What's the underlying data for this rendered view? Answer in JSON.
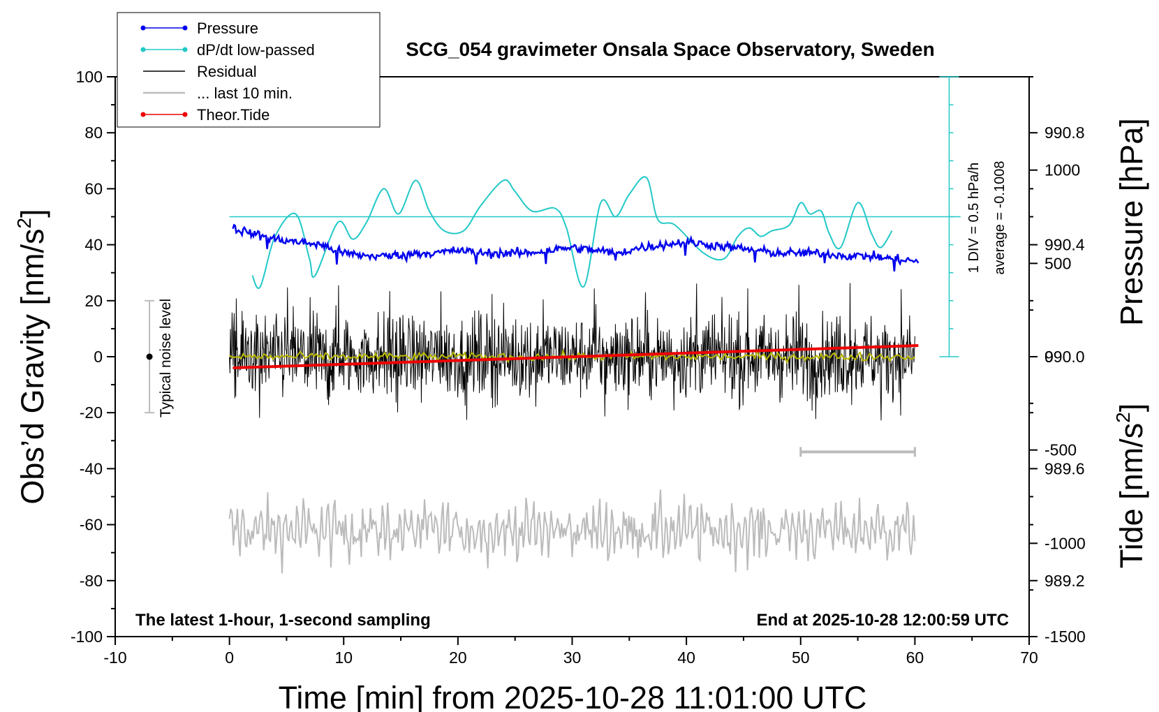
{
  "chart_data": {
    "type": "line",
    "title": "SCG_054 gravimeter Onsala Space Observatory, Sweden",
    "xlabel": "Time [min] from 2025-10-28 11:01:00 UTC",
    "ylabel_left": "Obs’d Gravity [nm/s",
    "ylabel_left_sup": "2",
    "ylabel_left_end": "]",
    "ylabel_right_pressure": "Pressure [hPa]",
    "ylabel_right_tide": "Tide [nm/s",
    "ylabel_right_tide_sup": "2",
    "ylabel_right_tide_end": "]",
    "xlim": [
      -10,
      70
    ],
    "ylim_gravity": [
      -100,
      100
    ],
    "ylim_pressure": [
      989.0,
      991.0
    ],
    "ylim_tide": [
      -1500,
      1500
    ],
    "x_ticks": [
      "-10",
      "0",
      "10",
      "20",
      "30",
      "40",
      "50",
      "60",
      "70"
    ],
    "y_ticks_gravity": [
      "-100",
      "-80",
      "-60",
      "-40",
      "-20",
      "0",
      "20",
      "40",
      "60",
      "80",
      "100"
    ],
    "y_ticks_pressure": [
      "989.2",
      "989.6",
      "990.0",
      "990.4",
      "990.8"
    ],
    "y_ticks_tide": [
      "-1500",
      "-1000",
      "-500",
      "0",
      "500",
      "1000"
    ],
    "grid": false,
    "legend_position": "top-left",
    "legend": [
      {
        "label": "Pressure",
        "color": "#0000ee",
        "marker": true
      },
      {
        "label": "dP/dt low-passed",
        "color": "#22c8c8",
        "marker": true
      },
      {
        "label": "Residual",
        "color": "#000000",
        "marker": false
      },
      {
        "label": "... last 10 min.",
        "color": "#bbbbbb",
        "marker": false
      },
      {
        "label": "Theor.Tide",
        "color": "#ee0000",
        "marker": true
      }
    ],
    "annotations": {
      "left_bottom": "The latest 1-hour, 1-second sampling",
      "right_bottom": "End at 2025-10-28 12:00:59 UTC",
      "noise": "Typical noise level",
      "dpdt_scale": "1 DIV = 0.5 hPa/h",
      "dpdt_average": "average = -0.1008"
    },
    "noise_bar": {
      "x": -7,
      "center": 0,
      "low": -20,
      "high": 20
    },
    "last10min_bar": {
      "x_start": 50,
      "x_end": 60,
      "y": -34
    },
    "dpdt_zero_level": 50,
    "dpdt_scale_bar": {
      "x": 63,
      "y_bottom": 0,
      "y_top": 100,
      "divisions": 10
    },
    "series": [
      {
        "name": "Pressure",
        "axis": "pressure",
        "color": "#0000ee",
        "x": [
          0.3,
          2,
          4,
          6,
          8,
          10,
          12,
          14,
          16,
          18,
          20,
          22,
          24,
          26,
          28,
          30,
          32,
          34,
          36,
          38,
          40,
          42,
          44,
          46,
          48,
          50,
          52,
          54,
          56,
          58,
          60.3
        ],
        "y": [
          990.46,
          990.44,
          990.42,
          990.41,
          990.4,
          990.37,
          990.36,
          990.36,
          990.37,
          990.37,
          990.38,
          990.37,
          990.37,
          990.37,
          990.38,
          990.39,
          990.38,
          990.37,
          990.39,
          990.4,
          990.41,
          990.4,
          990.39,
          990.38,
          990.37,
          990.37,
          990.37,
          990.36,
          990.36,
          990.35,
          990.34
        ]
      },
      {
        "name": "dP/dt low-passed",
        "axis": "gravity",
        "color": "#22c8c8",
        "x": [
          2,
          2.7,
          4,
          5.8,
          7,
          7.5,
          9.5,
          10.8,
          12,
          13.5,
          14.8,
          16.3,
          17.5,
          18.8,
          20.5,
          22,
          24,
          25,
          26.5,
          28.5,
          29.5,
          31,
          32.5,
          33.8,
          35,
          36.5,
          37.5,
          39,
          41.5,
          43.3,
          44.5,
          45.5,
          46.5,
          47.5,
          49,
          50,
          50.8,
          51.8,
          52.5,
          53.5,
          55,
          56.2,
          57,
          58
        ],
        "y": [
          29,
          25,
          43,
          51,
          35,
          29,
          48,
          42,
          48,
          60,
          51,
          63,
          52,
          45,
          45,
          54,
          63,
          59,
          52,
          53,
          46,
          25,
          55,
          50,
          58,
          64,
          49,
          47,
          37,
          35,
          43,
          46,
          43,
          45,
          47,
          55,
          51,
          52,
          44,
          39,
          55,
          44,
          39,
          45
        ]
      },
      {
        "name": "Residual",
        "axis": "gravity",
        "color": "#000000",
        "x_range": [
          0,
          60
        ],
        "envelope": 12,
        "max_excursion": 27,
        "min_excursion": -23
      },
      {
        "name": "Residual smoothed",
        "axis": "gravity",
        "color": "#b8b800",
        "x_range": [
          0,
          60
        ],
        "envelope": 1.5
      },
      {
        "name": "... last 10 min.",
        "axis": "gravity",
        "color": "#bbbbbb",
        "x_range": [
          0,
          60
        ],
        "center": -62,
        "envelope": 9,
        "max_excursion": -45,
        "min_excursion": -80
      },
      {
        "name": "Theor.Tide",
        "axis": "tide",
        "color": "#ee0000",
        "x": [
          0.3,
          60.3
        ],
        "y": [
          -60,
          60
        ]
      }
    ]
  }
}
